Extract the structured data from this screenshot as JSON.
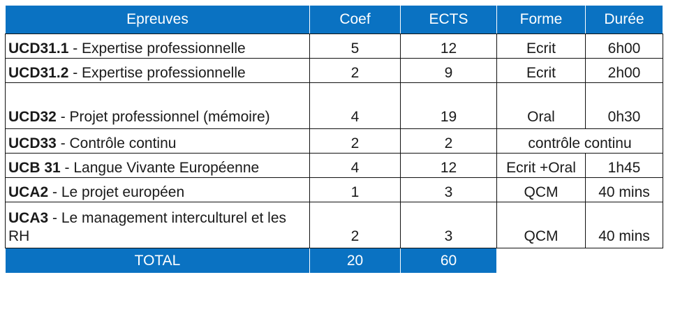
{
  "headers": [
    "Epreuves",
    "Coef",
    "ECTS",
    "Forme",
    "Durée"
  ],
  "rows": [
    {
      "code": "UCD31.1",
      "label": " - Expertise professionnelle",
      "coef": "5",
      "ects": "12",
      "forme": "Ecrit",
      "duree": "6h00"
    },
    {
      "code": "UCD31.2",
      "label": " - Expertise professionnelle",
      "coef": "2",
      "ects": "9",
      "forme": "Ecrit",
      "duree": "2h00"
    },
    {
      "code": "UCD32",
      "label": " - Projet professionnel (mémoire)",
      "coef": "4",
      "ects": "19",
      "forme": "Oral",
      "duree": "0h30"
    },
    {
      "code": "UCD33",
      "label": " - Contrôle continu",
      "coef": "2",
      "ects": "2",
      "forme_duree": "contrôle continu"
    },
    {
      "code": "UCB 31",
      "label": " - Langue Vivante Européenne",
      "coef": "4",
      "ects": "12",
      "forme": "Ecrit +Oral",
      "duree": "1h45"
    },
    {
      "code": "UCA2",
      "label": " - Le projet européen",
      "coef": "1",
      "ects": "3",
      "forme": "QCM",
      "duree": "40 mins"
    },
    {
      "code": "UCA3",
      "label": " - Le management interculturel et les RH",
      "coef": "2",
      "ects": "3",
      "forme": "QCM",
      "duree": "40 mins"
    }
  ],
  "total": {
    "label": "TOTAL",
    "coef": "20",
    "ects": "60"
  },
  "colors": {
    "header_bg": "#0a72c2",
    "header_text": "#ffffff"
  }
}
